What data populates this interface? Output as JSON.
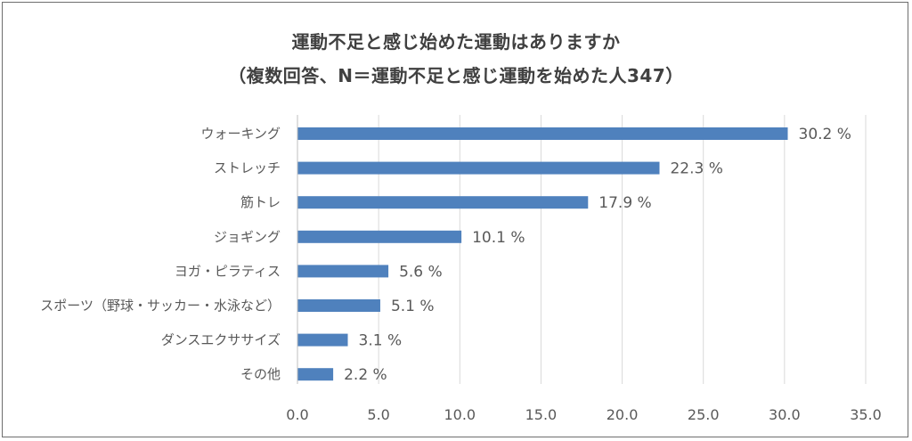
{
  "chart_data": {
    "type": "bar",
    "orientation": "horizontal",
    "title": "運動不足と感じ始めた運動はありますか",
    "subtitle": "（複数回答、N＝運動不足と感じ運動を始めた人347）",
    "categories": [
      "ウォーキング",
      "ストレッチ",
      "筋トレ",
      "ジョギング",
      "ヨガ・ピラティス",
      "スポーツ（野球・サッカー・水泳など）",
      "ダンスエクササイズ",
      "その他"
    ],
    "values": [
      30.2,
      22.3,
      17.9,
      10.1,
      5.6,
      5.1,
      3.1,
      2.2
    ],
    "value_labels": [
      "30.2 %",
      "22.3 %",
      "17.9 %",
      "10.1 %",
      "5.6 %",
      "5.1 %",
      "3.1 %",
      "2.2 %"
    ],
    "xticks": [
      "0.0",
      "5.0",
      "10.0",
      "15.0",
      "20.0",
      "25.0",
      "30.0",
      "35.0"
    ],
    "xlim": [
      0,
      35
    ],
    "grid": true,
    "bar_color": "#4f81bd",
    "xlabel": "",
    "ylabel": ""
  }
}
